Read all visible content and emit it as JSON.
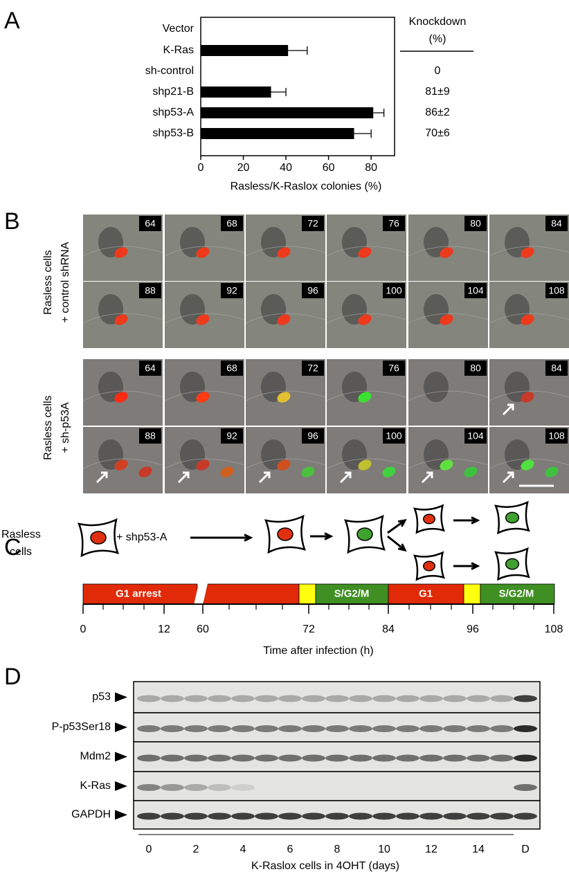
{
  "chart_data": {
    "type": "bar",
    "orientation": "horizontal",
    "panel_label": "A",
    "categories": [
      "Vector",
      "K-Ras",
      "sh-control",
      "shp21-B",
      "shp53-A",
      "shp53-B"
    ],
    "values": [
      null,
      41,
      null,
      33,
      81,
      72
    ],
    "errors": [
      null,
      9,
      null,
      7,
      5,
      8
    ],
    "color": "#000000",
    "xlabel": "Rasless/K-Raslox colonies (%)",
    "xlim": [
      0,
      91
    ],
    "xticks": [
      0,
      20,
      40,
      60,
      80
    ],
    "knockdown_header": [
      "Knockdown",
      "(%)"
    ],
    "knockdown": [
      null,
      null,
      "0",
      "81±9",
      "86±2",
      "70±6"
    ]
  },
  "panel_b": {
    "label": "B",
    "groups": [
      {
        "title": [
          "Rasless cells",
          "+ control shRNA"
        ],
        "times": [
          [
            64,
            68,
            72,
            76,
            80,
            84
          ],
          [
            88,
            92,
            96,
            100,
            104,
            108
          ]
        ]
      },
      {
        "title": [
          "Rasless cells",
          "+ sh-p53A"
        ],
        "times": [
          [
            64,
            68,
            72,
            76,
            80,
            84
          ],
          [
            88,
            92,
            96,
            100,
            104,
            108
          ]
        ]
      }
    ]
  },
  "panel_c": {
    "label": "C",
    "cell_label": [
      "Rasless",
      "cells"
    ],
    "treatment": "+ shp53-A",
    "phases": [
      "G1 arrest",
      "S/G2/M",
      "G1",
      "S/G2/M"
    ],
    "ticks": [
      0,
      12,
      60,
      72,
      84,
      96,
      108
    ],
    "xlabel": "Time after infection (h)"
  },
  "panel_d": {
    "label": "D",
    "proteins": [
      "p53",
      "P-p53Ser18",
      "Mdm2",
      "K-Ras",
      "GAPDH"
    ],
    "lanes": [
      0,
      2,
      4,
      6,
      8,
      10,
      12,
      14,
      "D"
    ],
    "xlabel": "K-Raslox cells in 4OHT (days)"
  }
}
